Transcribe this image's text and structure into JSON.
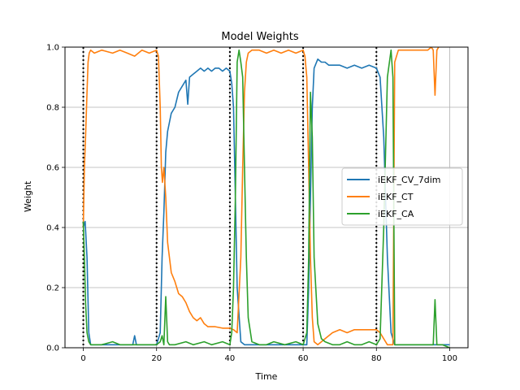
{
  "chart_data": {
    "type": "line",
    "title": "Model Weights",
    "xlabel": "Time",
    "ylabel": "Weight",
    "xlim": [
      -5,
      105
    ],
    "ylim": [
      0,
      1
    ],
    "xticks": [
      0,
      20,
      40,
      60,
      80,
      100
    ],
    "yticks": [
      0.0,
      0.2,
      0.4,
      0.6,
      0.8,
      1.0
    ],
    "ytick_labels": [
      "0.0",
      "0.2",
      "0.4",
      "0.6",
      "0.8",
      "1.0"
    ],
    "grid": true,
    "legend_position": "center-right",
    "vlines": [
      0,
      20,
      40,
      60,
      80
    ],
    "vline_style": "dotted",
    "series": [
      {
        "name": "iEKF_CV_7dim",
        "color": "#1f77b4",
        "x": [
          0,
          0.5,
          1,
          1.5,
          2,
          3,
          5,
          8,
          10,
          12,
          13.5,
          14,
          14.5,
          16,
          18,
          20,
          21,
          21.5,
          22,
          22.5,
          23,
          24,
          25,
          26,
          27,
          28,
          28.5,
          29,
          30,
          31,
          32,
          33,
          34,
          35,
          36,
          37,
          38,
          39,
          40,
          40.5,
          41,
          41.5,
          42,
          43,
          44,
          45,
          50,
          55,
          60,
          61,
          61.5,
          62,
          62.5,
          63,
          64,
          65,
          66,
          67,
          68,
          70,
          72,
          74,
          76,
          78,
          80,
          81,
          82,
          83,
          84,
          85,
          90,
          95,
          100
        ],
        "y": [
          0.4,
          0.42,
          0.3,
          0.05,
          0.01,
          0.01,
          0.01,
          0.01,
          0.01,
          0.01,
          0.01,
          0.04,
          0.01,
          0.01,
          0.01,
          0.01,
          0.05,
          0.3,
          0.45,
          0.65,
          0.72,
          0.78,
          0.8,
          0.85,
          0.87,
          0.89,
          0.81,
          0.9,
          0.91,
          0.92,
          0.93,
          0.92,
          0.93,
          0.92,
          0.93,
          0.93,
          0.92,
          0.93,
          0.92,
          0.88,
          0.8,
          0.5,
          0.2,
          0.02,
          0.01,
          0.01,
          0.01,
          0.01,
          0.01,
          0.01,
          0.2,
          0.5,
          0.8,
          0.93,
          0.96,
          0.95,
          0.95,
          0.94,
          0.94,
          0.94,
          0.93,
          0.94,
          0.93,
          0.94,
          0.93,
          0.9,
          0.7,
          0.3,
          0.05,
          0.01,
          0.01,
          0.01,
          0.01
        ]
      },
      {
        "name": "iEKF_CT",
        "color": "#ff7f0e",
        "x": [
          0,
          0.3,
          0.6,
          1,
          1.3,
          1.6,
          2,
          3,
          5,
          8,
          10,
          12,
          14,
          16,
          18,
          20,
          20.5,
          21,
          21.3,
          21.6,
          22,
          22.5,
          23,
          24,
          25,
          26,
          27,
          28,
          29,
          30,
          31,
          32,
          33,
          34,
          35,
          36,
          38,
          40,
          41,
          42,
          43,
          43.5,
          44,
          44.5,
          45,
          46,
          48,
          50,
          52,
          54,
          56,
          58,
          60,
          60.5,
          61,
          61.5,
          62,
          62.5,
          63,
          64,
          65,
          66,
          68,
          70,
          72,
          74,
          76,
          78,
          80,
          81,
          82,
          83,
          84,
          84.5,
          85,
          86,
          88,
          90,
          92,
          94,
          95,
          95.5,
          96,
          96.5,
          97
        ],
        "y": [
          0.4,
          0.6,
          0.7,
          0.85,
          0.95,
          0.98,
          0.99,
          0.98,
          0.99,
          0.98,
          0.99,
          0.98,
          0.97,
          0.99,
          0.98,
          0.99,
          0.97,
          0.8,
          0.6,
          0.55,
          0.6,
          0.5,
          0.35,
          0.25,
          0.22,
          0.18,
          0.17,
          0.15,
          0.12,
          0.1,
          0.09,
          0.1,
          0.08,
          0.07,
          0.07,
          0.07,
          0.065,
          0.065,
          0.06,
          0.05,
          0.3,
          0.6,
          0.85,
          0.95,
          0.98,
          0.99,
          0.99,
          0.98,
          0.99,
          0.98,
          0.99,
          0.98,
          0.99,
          0.97,
          0.9,
          0.6,
          0.3,
          0.1,
          0.02,
          0.01,
          0.02,
          0.03,
          0.05,
          0.06,
          0.05,
          0.06,
          0.06,
          0.06,
          0.06,
          0.05,
          0.03,
          0.01,
          0.01,
          0.01,
          0.95,
          0.99,
          0.99,
          0.99,
          0.99,
          0.99,
          1.0,
          0.99,
          0.84,
          0.99,
          1.0
        ]
      },
      {
        "name": "iEKF_CA",
        "color": "#2ca02c",
        "x": [
          0,
          0.3,
          0.6,
          1,
          1.5,
          2,
          3,
          5,
          8,
          10,
          12,
          14,
          16,
          18,
          20,
          21,
          21.5,
          22,
          22.5,
          23,
          23.5,
          24,
          25,
          28,
          30,
          33,
          35,
          38,
          40,
          40.5,
          41,
          41.5,
          42,
          42.5,
          43,
          43.5,
          44,
          44.5,
          45,
          46,
          48,
          50,
          52,
          55,
          58,
          60,
          61,
          61.5,
          62,
          62.5,
          63,
          64,
          65,
          66,
          68,
          70,
          72,
          74,
          76,
          78,
          80,
          81,
          82,
          83,
          84,
          84.5,
          85,
          86,
          88,
          90,
          92,
          94,
          95.5,
          96,
          96.5,
          98,
          100
        ],
        "y": [
          0.42,
          0.3,
          0.15,
          0.05,
          0.02,
          0.01,
          0.01,
          0.01,
          0.02,
          0.01,
          0.01,
          0.01,
          0.01,
          0.01,
          0.01,
          0.02,
          0.04,
          0.01,
          0.17,
          0.02,
          0.01,
          0.01,
          0.01,
          0.02,
          0.01,
          0.02,
          0.01,
          0.02,
          0.01,
          0.05,
          0.2,
          0.5,
          0.95,
          0.99,
          0.95,
          0.9,
          0.6,
          0.3,
          0.1,
          0.02,
          0.01,
          0.01,
          0.02,
          0.01,
          0.02,
          0.01,
          0.05,
          0.3,
          0.85,
          0.7,
          0.3,
          0.08,
          0.03,
          0.02,
          0.01,
          0.01,
          0.02,
          0.01,
          0.01,
          0.02,
          0.01,
          0.03,
          0.4,
          0.9,
          0.99,
          0.9,
          0.01,
          0.01,
          0.01,
          0.01,
          0.01,
          0.01,
          0.01,
          0.16,
          0.01,
          0.01,
          0.0
        ]
      }
    ]
  }
}
